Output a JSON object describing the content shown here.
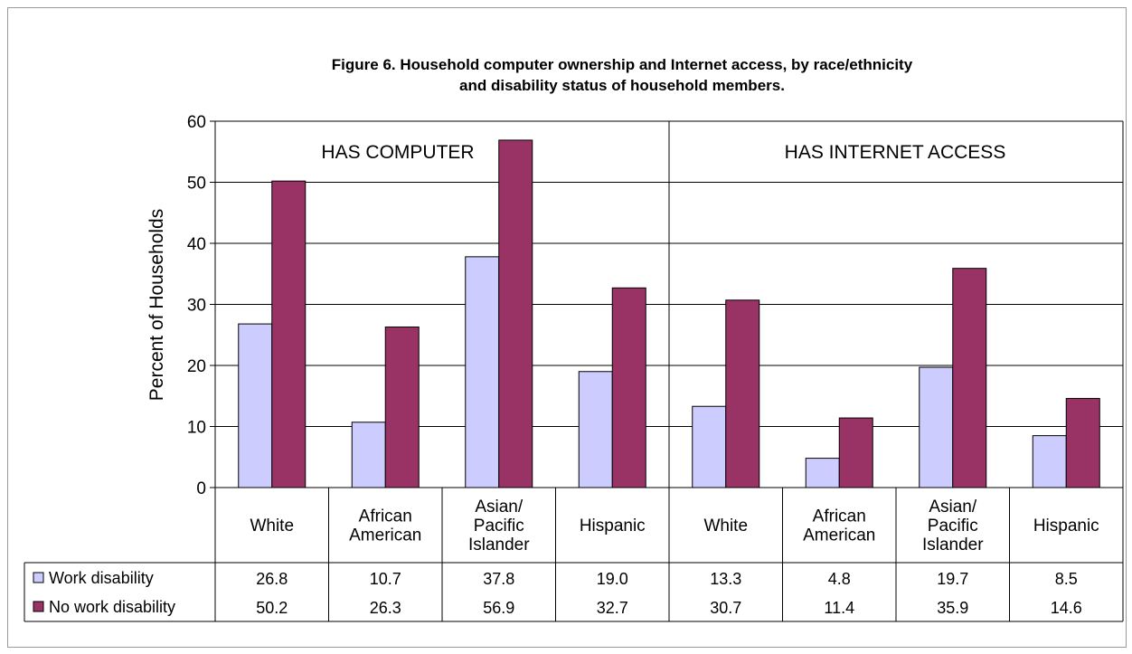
{
  "chart_data": {
    "type": "bar",
    "title_line1": "Figure 6.  Household computer ownership and Internet access, by race/ethnicity",
    "title_line2": "and disability status of household members.",
    "ylabel": "Percent of Households",
    "ylim": [
      0,
      60
    ],
    "yticks": [
      0,
      10,
      20,
      30,
      40,
      50,
      60
    ],
    "grid": true,
    "panels": [
      "HAS COMPUTER",
      "HAS INTERNET ACCESS"
    ],
    "categories": [
      [
        "White"
      ],
      [
        "African",
        "American"
      ],
      [
        "Asian/",
        "Pacific",
        "Islander"
      ],
      [
        "Hispanic"
      ],
      [
        "White"
      ],
      [
        "African",
        "American"
      ],
      [
        "Asian/",
        "Pacific",
        "Islander"
      ],
      [
        "Hispanic"
      ]
    ],
    "series": [
      {
        "name": "Work disability",
        "color": "#ccccff",
        "values": [
          26.8,
          10.7,
          37.8,
          19.0,
          13.3,
          4.8,
          19.7,
          8.5
        ],
        "labels": [
          "26.8",
          "10.7",
          "37.8",
          "19.0",
          "13.3",
          "4.8",
          "19.7",
          "8.5"
        ]
      },
      {
        "name": "No work disability",
        "color": "#993366",
        "values": [
          50.2,
          26.3,
          56.9,
          32.7,
          30.7,
          11.4,
          35.9,
          14.6
        ],
        "labels": [
          "50.2",
          "26.3",
          "56.9",
          "32.7",
          "30.7",
          "11.4",
          "35.9",
          "14.6"
        ]
      }
    ],
    "legend": "data-table-left"
  }
}
